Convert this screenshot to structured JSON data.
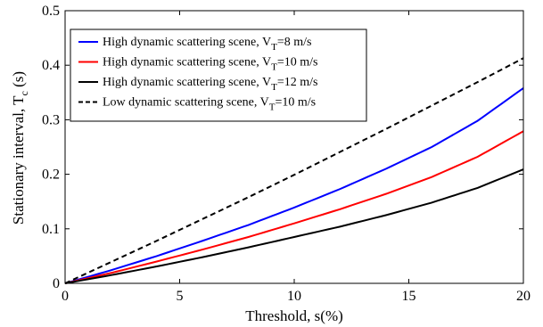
{
  "chart_data": {
    "type": "line",
    "xlabel": "Threshold, s(%)",
    "ylabel_main": "Stationary interval, T",
    "ylabel_sub": "c",
    "ylabel_unit": " (s)",
    "xlim": [
      0,
      20
    ],
    "ylim": [
      0,
      0.5
    ],
    "xticks": [
      0,
      5,
      10,
      15,
      20
    ],
    "yticks": [
      0,
      0.1,
      0.2,
      0.3,
      0.4,
      0.5
    ],
    "xtick_labels": [
      "0",
      "5",
      "10",
      "15",
      "20"
    ],
    "ytick_labels": [
      "0",
      "0.1",
      "0.2",
      "0.3",
      "0.4",
      "0.5"
    ],
    "grid": false,
    "legend_position": "top-left",
    "x": [
      0,
      2,
      4,
      6,
      8,
      10,
      12,
      14,
      16,
      18,
      20
    ],
    "series": [
      {
        "legend_main": "High dynamic scattering scene, V",
        "legend_sub": "T",
        "legend_tail": "=8 m/s",
        "color": "#0000ff",
        "dash": "solid",
        "values": [
          0,
          0.024,
          0.05,
          0.078,
          0.107,
          0.139,
          0.173,
          0.21,
          0.25,
          0.298,
          0.358
        ]
      },
      {
        "legend_main": "High dynamic scattering scene, V",
        "legend_sub": "T",
        "legend_tail": "=10 m/s",
        "color": "#ff0000",
        "dash": "solid",
        "values": [
          0,
          0.019,
          0.04,
          0.062,
          0.085,
          0.11,
          0.136,
          0.164,
          0.195,
          0.232,
          0.279
        ]
      },
      {
        "legend_main": "High dynamic scattering scene, V",
        "legend_sub": "T",
        "legend_tail": "=12 m/s",
        "color": "#000000",
        "dash": "solid",
        "values": [
          0,
          0.015,
          0.031,
          0.048,
          0.066,
          0.085,
          0.104,
          0.125,
          0.148,
          0.175,
          0.209
        ]
      },
      {
        "legend_main": "Low dynamic scattering scene, V",
        "legend_sub": "T",
        "legend_tail": "=10 m/s",
        "color": "#000000",
        "dash": "dashed",
        "values": [
          0,
          0.039,
          0.078,
          0.118,
          0.158,
          0.199,
          0.241,
          0.283,
          0.326,
          0.369,
          0.413
        ]
      }
    ]
  }
}
